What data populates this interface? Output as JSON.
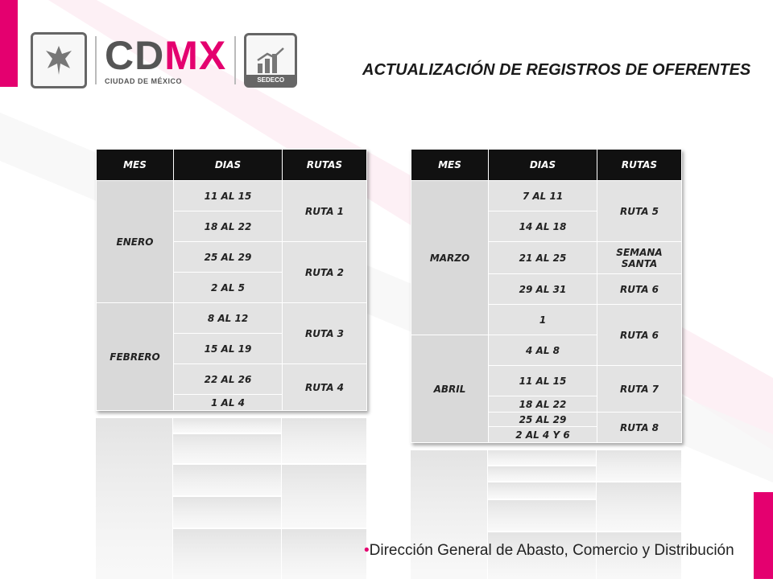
{
  "header": {
    "brand_main": "CD",
    "brand_accent": "MX",
    "brand_sub": "CIUDAD DE MÉXICO",
    "sedeco_label": "SEDECO",
    "title": "ACTUALIZACIÓN DE REGISTROS DE OFERENTES"
  },
  "colors": {
    "accent": "#e4006f",
    "header_bg": "#111111",
    "cell_bg": "#e3e3e3"
  },
  "table_left": {
    "headers": [
      "MES",
      "DIAS",
      "RUTAS"
    ],
    "months": [
      "ENERO",
      "FEBRERO"
    ],
    "days": [
      "11 AL 15",
      "18 AL 22",
      "25 AL 29",
      "2 AL 5",
      "8 AL 12",
      "15 AL 19",
      "22 AL 26",
      "1 AL 4"
    ],
    "routes": [
      "RUTA 1",
      "RUTA 2",
      "RUTA 3",
      "RUTA 4"
    ]
  },
  "table_right": {
    "headers": [
      "MES",
      "DIAS",
      "RUTAS"
    ],
    "months": [
      "MARZO",
      "ABRIL"
    ],
    "days": [
      "7 AL 11",
      "14 AL 18",
      "21 AL 25",
      "29 AL 31",
      "1",
      "4 AL 8",
      "11 AL 15",
      "18 AL 22",
      "25 AL 29",
      "2 AL 4 Y 6"
    ],
    "routes": [
      "RUTA 5",
      "SEMANA SANTA",
      "RUTA 6",
      "RUTA 6",
      "RUTA 7",
      "RUTA 8"
    ]
  },
  "footer": {
    "bullet": "•",
    "text": "Dirección General de Abasto, Comercio y Distribución"
  }
}
